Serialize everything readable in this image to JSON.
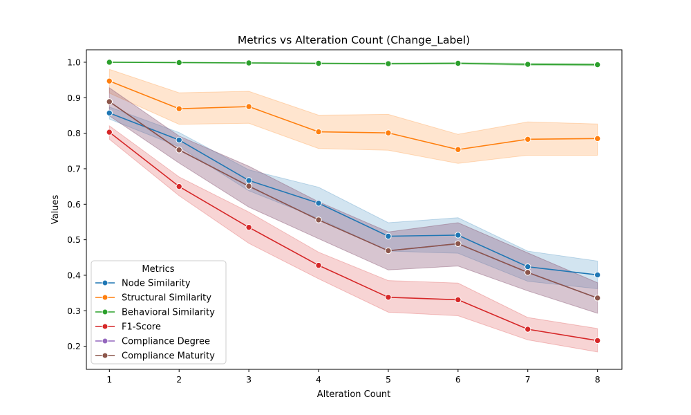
{
  "chart_data": {
    "type": "line",
    "title": "Metrics vs Alteration Count (Change_Label)",
    "xlabel": "Alteration Count",
    "ylabel": "Values",
    "x": [
      1,
      2,
      3,
      4,
      5,
      6,
      7,
      8
    ],
    "xlim": [
      0.67,
      8.35
    ],
    "ylim": [
      0.135,
      1.035
    ],
    "xticks": [
      1,
      2,
      3,
      4,
      5,
      6,
      7,
      8
    ],
    "yticks": [
      0.2,
      0.3,
      0.4,
      0.5,
      0.6,
      0.7,
      0.8,
      0.9,
      1.0
    ],
    "grid": false,
    "legend": {
      "title": "Metrics",
      "placement": "lower-left"
    },
    "series": [
      {
        "name": "Node Similarity",
        "color": "#1f77b4",
        "values": [
          0.857,
          0.781,
          0.667,
          0.603,
          0.51,
          0.513,
          0.424,
          0.401
        ],
        "lower": [
          0.84,
          0.762,
          0.638,
          0.56,
          0.468,
          0.462,
          0.383,
          0.362
        ],
        "upper": [
          0.874,
          0.802,
          0.697,
          0.648,
          0.548,
          0.562,
          0.468,
          0.44
        ]
      },
      {
        "name": "Structural Similarity",
        "color": "#ff7f0e",
        "values": [
          0.947,
          0.869,
          0.875,
          0.804,
          0.801,
          0.754,
          0.783,
          0.785
        ],
        "lower": [
          0.913,
          0.825,
          0.828,
          0.757,
          0.752,
          0.715,
          0.738,
          0.738
        ],
        "upper": [
          0.98,
          0.914,
          0.918,
          0.851,
          0.853,
          0.797,
          0.832,
          0.826
        ]
      },
      {
        "name": "Behavioral Similarity",
        "color": "#2ca02c",
        "values": [
          1.0,
          0.999,
          0.998,
          0.997,
          0.996,
          0.997,
          0.994,
          0.993
        ],
        "lower": [
          0.999,
          0.998,
          0.997,
          0.995,
          0.994,
          0.995,
          0.991,
          0.99
        ],
        "upper": [
          1.0,
          1.0,
          0.999,
          0.998,
          0.998,
          0.999,
          0.997,
          0.996
        ]
      },
      {
        "name": "F1-Score",
        "color": "#d62728",
        "values": [
          0.803,
          0.65,
          0.535,
          0.428,
          0.338,
          0.331,
          0.248,
          0.216
        ],
        "lower": [
          0.783,
          0.624,
          0.49,
          0.39,
          0.296,
          0.286,
          0.218,
          0.184
        ],
        "upper": [
          0.821,
          0.677,
          0.578,
          0.465,
          0.385,
          0.378,
          0.281,
          0.25
        ]
      },
      {
        "name": "Compliance Degree",
        "color": "#9467bd",
        "values": [
          0.889,
          0.753,
          0.651,
          0.556,
          0.469,
          0.489,
          0.408,
          0.336
        ],
        "lower": [
          0.849,
          0.716,
          0.592,
          0.503,
          0.415,
          0.426,
          0.356,
          0.293
        ],
        "upper": [
          0.928,
          0.792,
          0.707,
          0.607,
          0.522,
          0.548,
          0.463,
          0.379
        ]
      },
      {
        "name": "Compliance Maturity",
        "color": "#8c564b",
        "values": [
          0.889,
          0.753,
          0.651,
          0.556,
          0.469,
          0.489,
          0.408,
          0.336
        ],
        "lower": [
          0.849,
          0.716,
          0.592,
          0.503,
          0.415,
          0.426,
          0.356,
          0.293
        ],
        "upper": [
          0.928,
          0.792,
          0.707,
          0.607,
          0.522,
          0.548,
          0.463,
          0.379
        ]
      }
    ]
  }
}
